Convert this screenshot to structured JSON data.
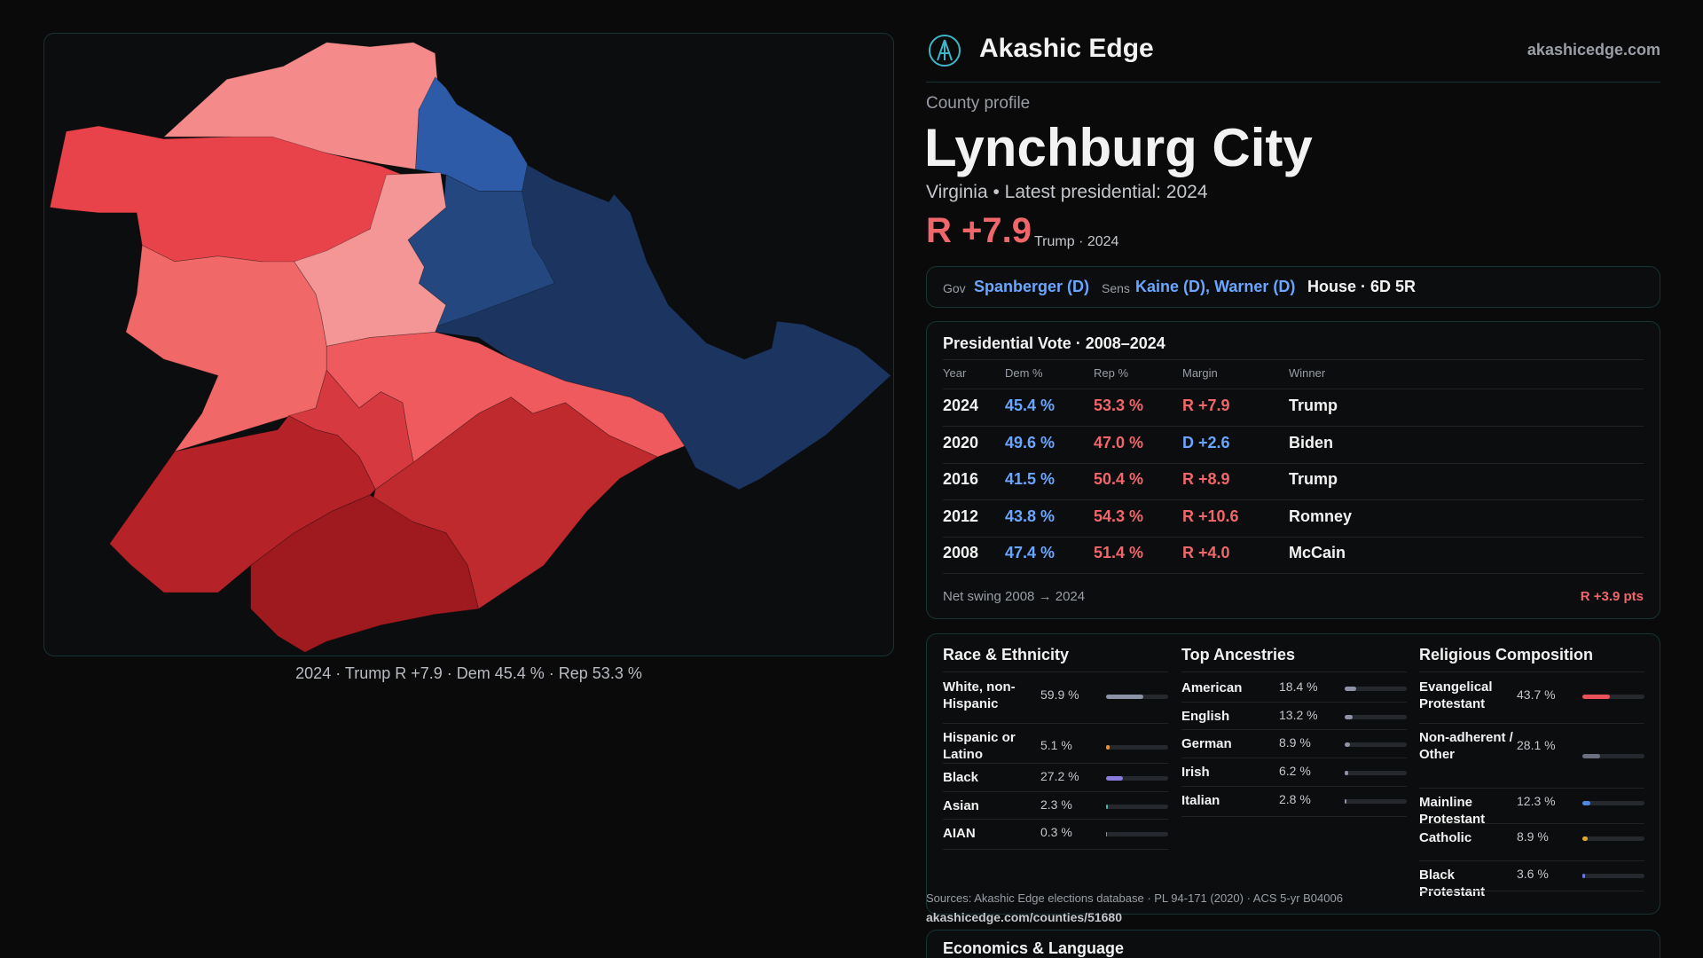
{
  "header": {
    "brand": "Akashic Edge",
    "site": "akashicedge.com"
  },
  "profile": {
    "eyebrow": "County profile",
    "title": "Lynchburg City",
    "subtitle": "Virginia • Latest presidential: 2024",
    "margin": "R +7.9",
    "margin_note": "Trump · 2024"
  },
  "officials": {
    "gov_label": "Gov",
    "gov": "Spanberger (D)",
    "sens_label": "Sens",
    "sens": "Kaine (D), Warner (D)",
    "house": "House · 6D 5R"
  },
  "map": {
    "caption": "2024 · Trump R +7.9 · Dem 45.4 % · Rep 53.3 %"
  },
  "presidential": {
    "title": "Presidential Vote · 2008–2024",
    "columns": [
      "Year",
      "Dem %",
      "Rep %",
      "Margin",
      "Winner"
    ],
    "rows": [
      [
        "2024",
        "45.4 %",
        "53.3 %",
        "R +7.9",
        "Trump"
      ],
      [
        "2020",
        "49.6 %",
        "47.0 %",
        "D +2.6",
        "Biden"
      ],
      [
        "2016",
        "41.5 %",
        "50.4 %",
        "R +8.9",
        "Trump"
      ],
      [
        "2012",
        "43.8 %",
        "54.3 %",
        "R +10.6",
        "Romney"
      ],
      [
        "2008",
        "47.4 %",
        "51.4 %",
        "R +4.0",
        "McCain"
      ]
    ],
    "swing_label": "Net swing 2008 → 2024",
    "swing": "R +3.9 pts"
  },
  "race": {
    "title": "Race & Ethnicity",
    "rows": [
      {
        "label": "White, non-Hispanic",
        "value": 59.9,
        "value_label": "59.9 %",
        "color": "#8d93a6"
      },
      {
        "label": "Hispanic or Latino",
        "value": 5.1,
        "value_label": "5.1 %",
        "color": "#e8922c"
      },
      {
        "label": "Black",
        "value": 27.2,
        "value_label": "27.2 %",
        "color": "#8a7be0"
      },
      {
        "label": "Asian",
        "value": 2.3,
        "value_label": "2.3 %",
        "color": "#3fb6a8"
      },
      {
        "label": "AIAN",
        "value": 0.3,
        "value_label": "0.3 %",
        "color": "#8d93a6"
      }
    ]
  },
  "ancestry": {
    "title": "Top Ancestries",
    "rows": [
      {
        "label": "American",
        "value": 18.4,
        "value_label": "18.4 %",
        "color": "#8d93a6"
      },
      {
        "label": "English",
        "value": 13.2,
        "value_label": "13.2 %",
        "color": "#8d93a6"
      },
      {
        "label": "German",
        "value": 8.9,
        "value_label": "8.9 %",
        "color": "#8d93a6"
      },
      {
        "label": "Irish",
        "value": 6.2,
        "value_label": "6.2 %",
        "color": "#8d93a6"
      },
      {
        "label": "Italian",
        "value": 2.8,
        "value_label": "2.8 %",
        "color": "#8d93a6"
      }
    ]
  },
  "religion": {
    "title": "Religious Composition",
    "rows": [
      {
        "label": "Evangelical Protestant",
        "value": 43.7,
        "value_label": "43.7 %",
        "color": "#e8505a"
      },
      {
        "label": "Non-adherent / Other",
        "value": 28.1,
        "value_label": "28.1 %",
        "color": "#6b7080"
      },
      {
        "label": "Mainline Protestant",
        "value": 12.3,
        "value_label": "12.3 %",
        "color": "#4f86e0"
      },
      {
        "label": "Catholic",
        "value": 8.9,
        "value_label": "8.9 %",
        "color": "#e0a828"
      },
      {
        "label": "Black Protestant",
        "value": 3.6,
        "value_label": "3.6 %",
        "color": "#6a78e0"
      }
    ]
  },
  "footer": {
    "sources": "Sources: Akashic Edge elections database · PL 94-171 (2020) · ACS 5-yr B04006",
    "url": "akashicedge.com/counties/51680"
  },
  "economics": {
    "title": "Economics & Language"
  }
}
